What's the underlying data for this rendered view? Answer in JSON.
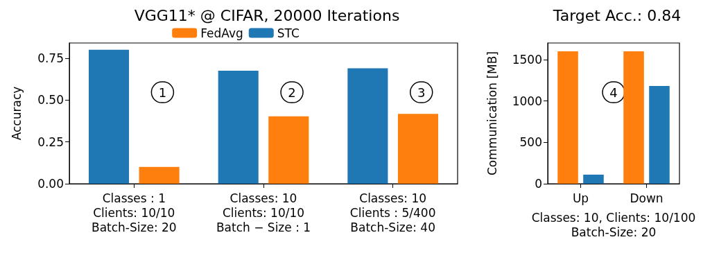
{
  "chart_data": [
    {
      "type": "bar",
      "title": "VGG11* @ CIFAR, 20000 Iterations",
      "ylabel": "Accuracy",
      "categories": [
        "Classes : 1\nClients: 10/10\nBatch-Size: 20",
        "Classes: 10\nClients: 10/10\nBatch − Size : 1",
        "Classes: 10\nClients : 5/400\nBatch-Size: 40"
      ],
      "series": [
        {
          "name": "STC",
          "color": "#1f77b4",
          "values": [
            0.8,
            0.674,
            0.689
          ]
        },
        {
          "name": "FedAvg",
          "color": "#ff7f0e",
          "values": [
            0.1,
            0.402,
            0.417
          ]
        }
      ],
      "ylim": [
        0,
        0.84
      ],
      "yticks": [
        {
          "value": 0,
          "label": "0.00"
        },
        {
          "value": 0.25,
          "label": "0.25"
        },
        {
          "value": 0.5,
          "label": "0.50"
        },
        {
          "value": 0.75,
          "label": "0.75"
        }
      ],
      "annotations": [
        "1",
        "2",
        "3"
      ],
      "grid": false,
      "legend": "top"
    },
    {
      "type": "bar",
      "title": "Target Acc.: 0.84",
      "ylabel": "Communication [MB]",
      "xlabel": "Classes: 10, Clients: 10/100\nBatch-Size: 20",
      "categories": [
        "Up",
        "Down"
      ],
      "series": [
        {
          "color": "#ff7f0e",
          "values": [
            1600,
            1600
          ]
        },
        {
          "color": "#1f77b4",
          "values": [
            110,
            1180
          ]
        }
      ],
      "ylim": [
        0,
        1700
      ],
      "yticks": [
        0,
        500,
        1000,
        1500
      ],
      "annotations": [
        "4"
      ],
      "grid": false,
      "legend": false
    }
  ]
}
